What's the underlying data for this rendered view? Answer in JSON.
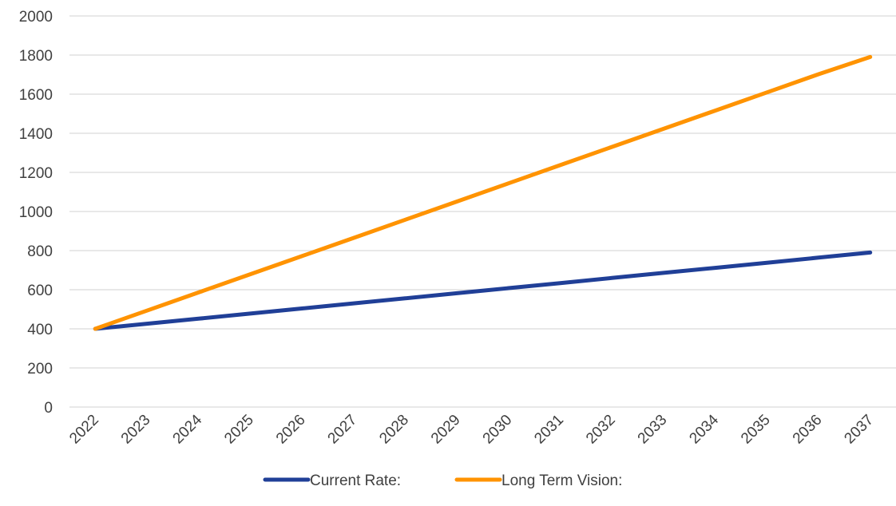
{
  "chart_data": {
    "type": "line",
    "categories": [
      "2022",
      "2023",
      "2024",
      "2025",
      "2026",
      "2027",
      "2028",
      "2029",
      "2030",
      "2031",
      "2032",
      "2033",
      "2034",
      "2035",
      "2036",
      "2037"
    ],
    "series": [
      {
        "name": "Current Rate:",
        "color": "#203f97",
        "values": [
          400,
          426,
          452,
          478,
          504,
          530,
          556,
          582,
          608,
          634,
          660,
          686,
          712,
          738,
          764,
          790
        ]
      },
      {
        "name": "Long Term Vision:",
        "color": "#ff9300",
        "values": [
          400,
          493,
          586,
          679,
          772,
          865,
          958,
          1051,
          1144,
          1237,
          1330,
          1423,
          1516,
          1609,
          1702,
          1790
        ]
      }
    ],
    "ylim": [
      0,
      2000
    ],
    "yticks": [
      0,
      200,
      400,
      600,
      800,
      1000,
      1200,
      1400,
      1600,
      1800,
      2000
    ],
    "grid": true,
    "legend_position": "bottom"
  }
}
